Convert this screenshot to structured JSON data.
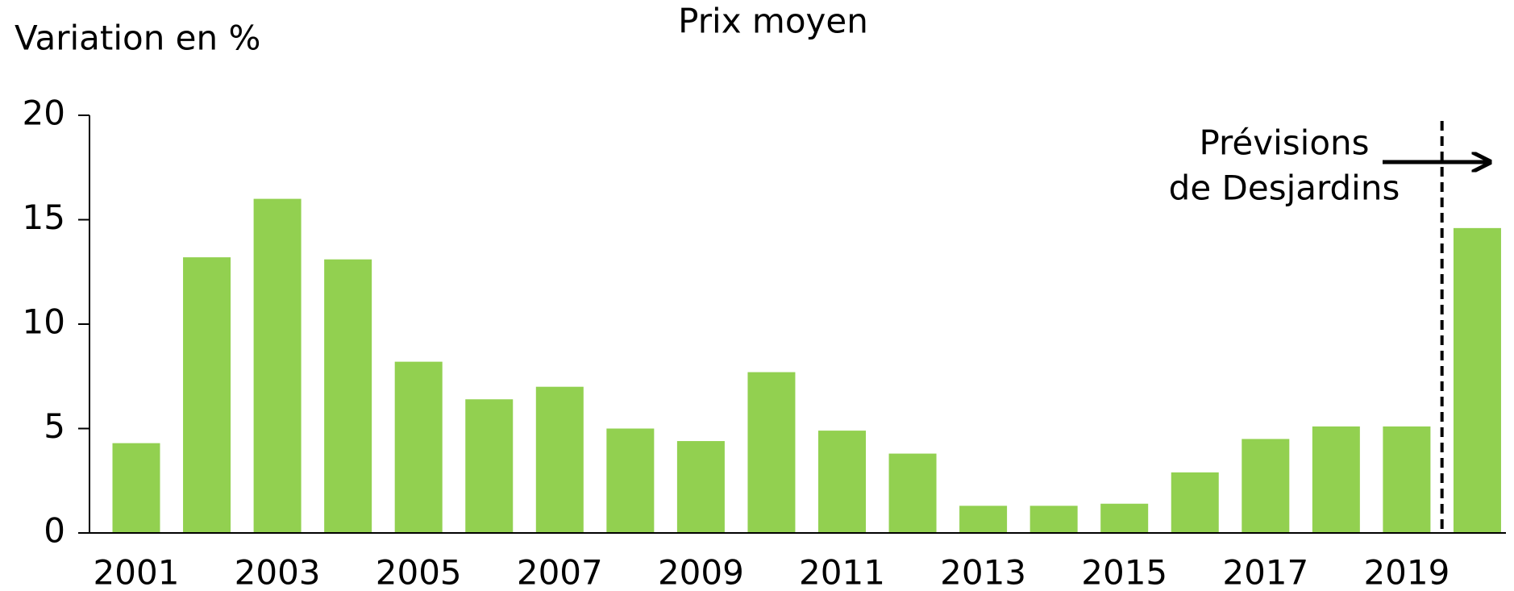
{
  "chart_data": {
    "type": "bar",
    "title": "Prix moyen",
    "y_label": "Variation en %",
    "annotation": [
      "Prévisions",
      "de Desjardins"
    ],
    "categories": [
      "2001",
      null,
      "2003",
      null,
      "2005",
      null,
      "2007",
      null,
      "2009",
      null,
      "2011",
      null,
      "2013",
      null,
      "2015",
      null,
      "2017",
      null,
      "2019",
      null
    ],
    "values": [
      4.3,
      13.2,
      16.0,
      13.1,
      8.2,
      6.4,
      7.0,
      5.0,
      4.4,
      7.7,
      4.9,
      3.8,
      1.3,
      1.3,
      1.4,
      2.9,
      4.5,
      5.1,
      5.1,
      14.6
    ],
    "color": "#92d050",
    "ylim": [
      0,
      20
    ],
    "yticks": [
      0,
      5,
      10,
      15,
      20
    ],
    "grid": false
  }
}
